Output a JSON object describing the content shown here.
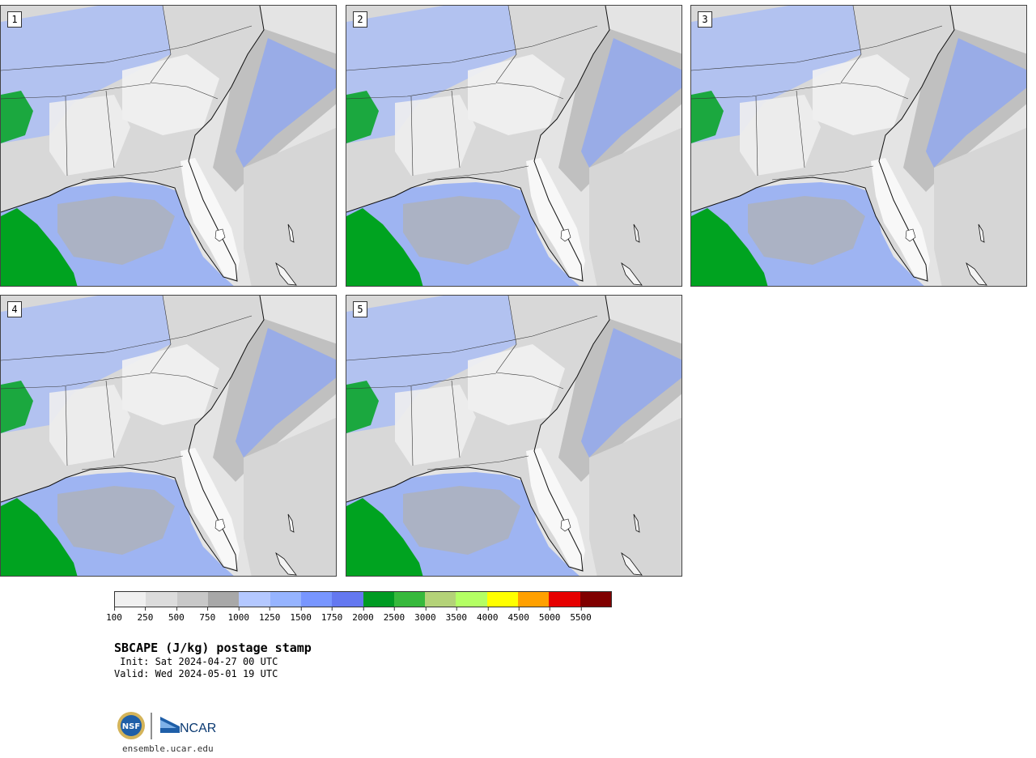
{
  "panels": [
    {
      "label": "1"
    },
    {
      "label": "2"
    },
    {
      "label": "3"
    },
    {
      "label": "4"
    },
    {
      "label": "5"
    }
  ],
  "legend": {
    "colors": [
      "#f0f0f0",
      "#dcdcdc",
      "#c8c8c8",
      "#a8a8a8",
      "#b4c8ff",
      "#96b4ff",
      "#7896ff",
      "#6478f0",
      "#009b23",
      "#37b93c",
      "#b4d278",
      "#b4ff64",
      "#ffff00",
      "#ffa000",
      "#e60000",
      "#800000"
    ],
    "ticks": [
      "100",
      "250",
      "500",
      "750",
      "1000",
      "1250",
      "1500",
      "1750",
      "2000",
      "2500",
      "3000",
      "3500",
      "4000",
      "4500",
      "5000",
      "5500"
    ]
  },
  "title": "SBCAPE (J/kg) postage stamp",
  "init": " Init: Sat 2024-04-27 00 UTC",
  "valid": "Valid: Wed 2024-05-01 19 UTC",
  "logos": {
    "nsf": "NSF",
    "ncar": "NCAR"
  },
  "website": "ensemble.ucar.edu"
}
